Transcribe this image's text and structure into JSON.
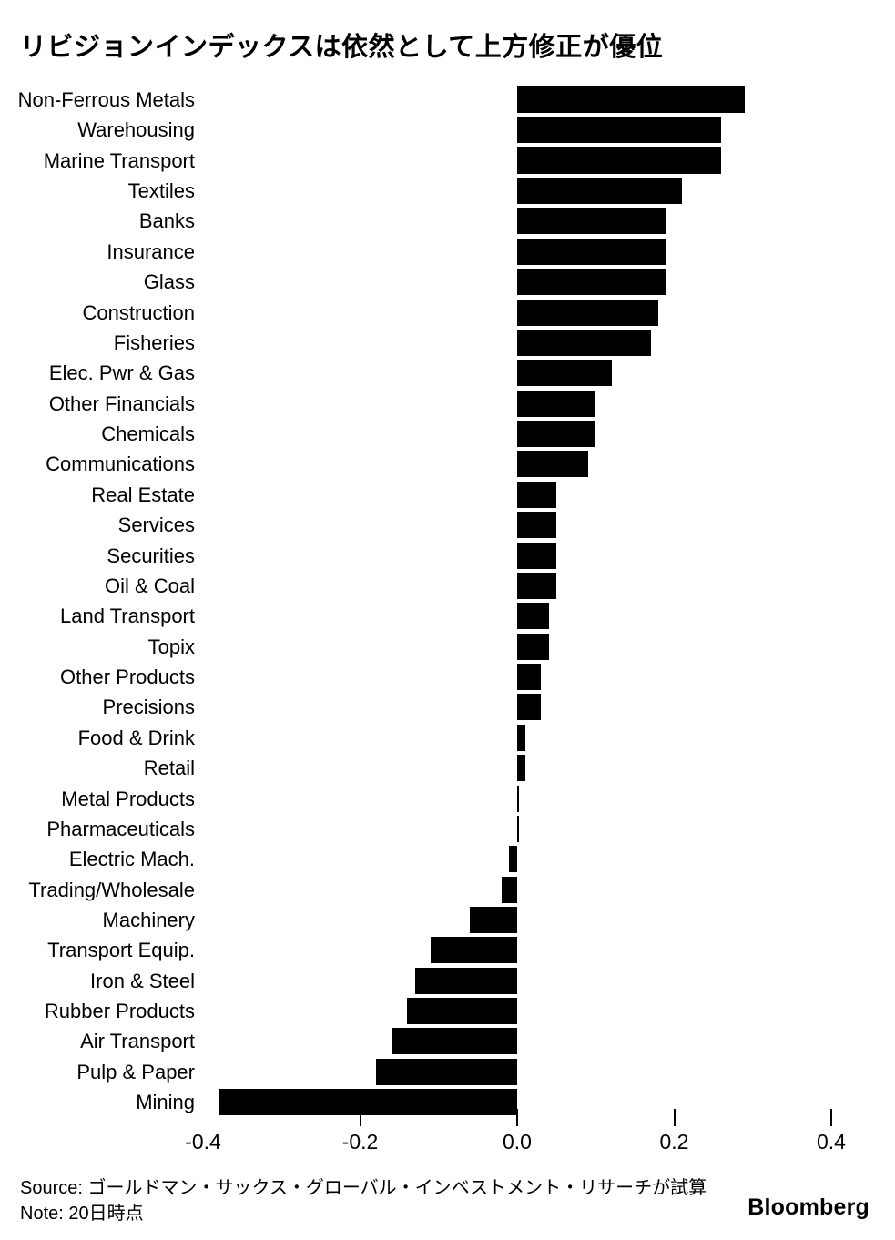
{
  "chart_data": {
    "type": "bar",
    "orientation": "horizontal",
    "title": "リビジョンインデックスは依然として上方修正が優位",
    "categories": [
      "Non-Ferrous Metals",
      "Warehousing",
      "Marine Transport",
      "Textiles",
      "Banks",
      "Insurance",
      "Glass",
      "Construction",
      "Fisheries",
      "Elec. Pwr & Gas",
      "Other Financials",
      "Chemicals",
      "Communications",
      "Real Estate",
      "Services",
      "Securities",
      "Oil & Coal",
      "Land Transport",
      "Topix",
      "Other Products",
      "Precisions",
      "Food & Drink",
      "Retail",
      "Metal Products",
      "Pharmaceuticals",
      "Electric Mach.",
      "Trading/Wholesale",
      "Machinery",
      "Transport Equip.",
      "Iron & Steel",
      "Rubber Products",
      "Air Transport",
      "Pulp & Paper",
      "Mining"
    ],
    "values": [
      0.29,
      0.26,
      0.26,
      0.21,
      0.19,
      0.19,
      0.19,
      0.18,
      0.17,
      0.12,
      0.1,
      0.1,
      0.09,
      0.05,
      0.05,
      0.05,
      0.05,
      0.04,
      0.04,
      0.03,
      0.03,
      0.01,
      0.01,
      0.002,
      0.002,
      -0.01,
      -0.02,
      -0.06,
      -0.11,
      -0.13,
      -0.14,
      -0.16,
      -0.18,
      -0.38
    ],
    "xlim": [
      -0.4,
      0.4
    ],
    "axis": {
      "label_values": [
        -0.4,
        -0.2,
        0.0,
        0.2,
        0.4
      ],
      "labels": [
        "-0.4",
        "-0.2",
        "0.0",
        "0.2",
        "0.4"
      ],
      "tick_values": [
        -0.2,
        0.0,
        0.2,
        0.4
      ]
    },
    "grid": false,
    "bar_color": "#000000",
    "background_color": "#ffffff"
  },
  "footer": {
    "source": "Source: ゴールドマン・サックス・グローバル・インベストメント・リサーチが試算",
    "note": "Note: 20日時点",
    "brand": "Bloomberg"
  }
}
